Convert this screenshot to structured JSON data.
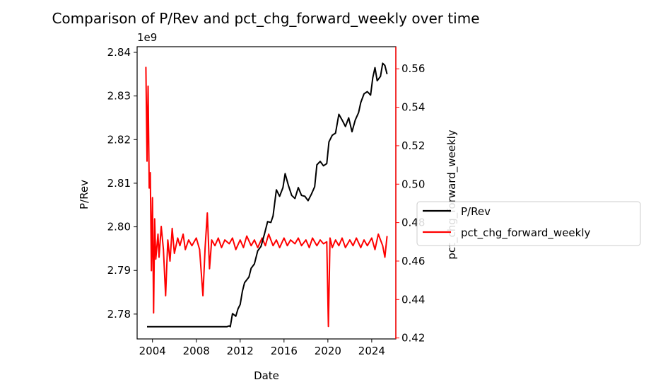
{
  "chart_data": {
    "type": "line",
    "title": "Comparison of P/Rev and pct_chg_forward_weekly over time",
    "xlabel": "Date",
    "xlim": [
      2002.6,
      2026.2
    ],
    "x_ticks": [
      2004,
      2008,
      2012,
      2016,
      2020,
      2024
    ],
    "y_left": {
      "label": "P/Rev",
      "offset_text": "1e9",
      "ylim": [
        2.7743,
        2.8413
      ],
      "ticks": [
        2.78,
        2.79,
        2.8,
        2.81,
        2.82,
        2.83,
        2.84
      ],
      "color": "#000000"
    },
    "y_right": {
      "label": "pct_chg_forward_weekly",
      "ylim": [
        0.4195,
        0.5715
      ],
      "ticks": [
        0.42,
        0.44,
        0.46,
        0.48,
        0.5,
        0.52,
        0.54,
        0.56
      ],
      "color": "#ff0000"
    },
    "legend_position": "right",
    "series": [
      {
        "name": "P/Rev",
        "axis": "left",
        "color": "#000000",
        "points": [
          [
            2003.5,
            2.7771
          ],
          [
            2010.8,
            2.7771
          ],
          [
            2011.0,
            2.7773
          ],
          [
            2011.1,
            2.7771
          ],
          [
            2011.3,
            2.7801
          ],
          [
            2011.6,
            2.7795
          ],
          [
            2011.8,
            2.7812
          ],
          [
            2012.0,
            2.7822
          ],
          [
            2012.2,
            2.7852
          ],
          [
            2012.4,
            2.7872
          ],
          [
            2012.8,
            2.7885
          ],
          [
            2013.0,
            2.7905
          ],
          [
            2013.3,
            2.7915
          ],
          [
            2013.6,
            2.7945
          ],
          [
            2013.9,
            2.7955
          ],
          [
            2014.2,
            2.7982
          ],
          [
            2014.5,
            2.8012
          ],
          [
            2014.8,
            2.801
          ],
          [
            2015.0,
            2.8025
          ],
          [
            2015.3,
            2.8085
          ],
          [
            2015.6,
            2.807
          ],
          [
            2015.9,
            2.809
          ],
          [
            2016.1,
            2.8122
          ],
          [
            2016.4,
            2.8095
          ],
          [
            2016.7,
            2.8072
          ],
          [
            2017.0,
            2.8065
          ],
          [
            2017.3,
            2.809
          ],
          [
            2017.6,
            2.8072
          ],
          [
            2017.9,
            2.807
          ],
          [
            2018.2,
            2.806
          ],
          [
            2018.5,
            2.8075
          ],
          [
            2018.8,
            2.8092
          ],
          [
            2019.0,
            2.8142
          ],
          [
            2019.3,
            2.815
          ],
          [
            2019.6,
            2.814
          ],
          [
            2019.9,
            2.8145
          ],
          [
            2020.1,
            2.8195
          ],
          [
            2020.4,
            2.821
          ],
          [
            2020.7,
            2.8215
          ],
          [
            2021.0,
            2.8258
          ],
          [
            2021.3,
            2.8245
          ],
          [
            2021.6,
            2.823
          ],
          [
            2021.9,
            2.825
          ],
          [
            2022.2,
            2.8218
          ],
          [
            2022.5,
            2.8245
          ],
          [
            2022.8,
            2.8262
          ],
          [
            2023.0,
            2.8285
          ],
          [
            2023.3,
            2.8305
          ],
          [
            2023.6,
            2.831
          ],
          [
            2023.9,
            2.8302
          ],
          [
            2024.1,
            2.8342
          ],
          [
            2024.3,
            2.8365
          ],
          [
            2024.5,
            2.8335
          ],
          [
            2024.8,
            2.8345
          ],
          [
            2025.0,
            2.8375
          ],
          [
            2025.2,
            2.837
          ],
          [
            2025.4,
            2.835
          ]
        ]
      },
      {
        "name": "pct_chg_forward_weekly",
        "axis": "right",
        "color": "#ff0000",
        "points": [
          [
            2003.4,
            0.561
          ],
          [
            2003.5,
            0.512
          ],
          [
            2003.6,
            0.551
          ],
          [
            2003.7,
            0.498
          ],
          [
            2003.8,
            0.506
          ],
          [
            2003.9,
            0.455
          ],
          [
            2004.0,
            0.493
          ],
          [
            2004.1,
            0.433
          ],
          [
            2004.2,
            0.482
          ],
          [
            2004.3,
            0.461
          ],
          [
            2004.5,
            0.474
          ],
          [
            2004.6,
            0.462
          ],
          [
            2004.8,
            0.478
          ],
          [
            2005.0,
            0.466
          ],
          [
            2005.2,
            0.442
          ],
          [
            2005.4,
            0.471
          ],
          [
            2005.6,
            0.46
          ],
          [
            2005.8,
            0.477
          ],
          [
            2006.0,
            0.464
          ],
          [
            2006.3,
            0.472
          ],
          [
            2006.5,
            0.468
          ],
          [
            2006.8,
            0.474
          ],
          [
            2007.0,
            0.466
          ],
          [
            2007.3,
            0.471
          ],
          [
            2007.6,
            0.468
          ],
          [
            2008.0,
            0.472
          ],
          [
            2008.3,
            0.466
          ],
          [
            2008.6,
            0.442
          ],
          [
            2008.8,
            0.467
          ],
          [
            2009.0,
            0.485
          ],
          [
            2009.2,
            0.456
          ],
          [
            2009.4,
            0.471
          ],
          [
            2009.7,
            0.468
          ],
          [
            2010.0,
            0.472
          ],
          [
            2010.3,
            0.467
          ],
          [
            2010.6,
            0.471
          ],
          [
            2011.0,
            0.469
          ],
          [
            2011.3,
            0.472
          ],
          [
            2011.6,
            0.466
          ],
          [
            2012.0,
            0.471
          ],
          [
            2012.3,
            0.467
          ],
          [
            2012.6,
            0.473
          ],
          [
            2013.0,
            0.468
          ],
          [
            2013.3,
            0.471
          ],
          [
            2013.6,
            0.467
          ],
          [
            2014.0,
            0.472
          ],
          [
            2014.3,
            0.468
          ],
          [
            2014.6,
            0.474
          ],
          [
            2015.0,
            0.468
          ],
          [
            2015.3,
            0.471
          ],
          [
            2015.6,
            0.467
          ],
          [
            2016.0,
            0.472
          ],
          [
            2016.3,
            0.468
          ],
          [
            2016.6,
            0.471
          ],
          [
            2017.0,
            0.469
          ],
          [
            2017.3,
            0.472
          ],
          [
            2017.6,
            0.468
          ],
          [
            2018.0,
            0.471
          ],
          [
            2018.3,
            0.467
          ],
          [
            2018.6,
            0.472
          ],
          [
            2019.0,
            0.468
          ],
          [
            2019.3,
            0.471
          ],
          [
            2019.6,
            0.469
          ],
          [
            2019.9,
            0.47
          ],
          [
            2020.05,
            0.426
          ],
          [
            2020.2,
            0.472
          ],
          [
            2020.4,
            0.467
          ],
          [
            2020.7,
            0.471
          ],
          [
            2021.0,
            0.468
          ],
          [
            2021.3,
            0.472
          ],
          [
            2021.6,
            0.467
          ],
          [
            2022.0,
            0.471
          ],
          [
            2022.3,
            0.468
          ],
          [
            2022.6,
            0.472
          ],
          [
            2023.0,
            0.467
          ],
          [
            2023.3,
            0.471
          ],
          [
            2023.6,
            0.468
          ],
          [
            2024.0,
            0.472
          ],
          [
            2024.3,
            0.466
          ],
          [
            2024.6,
            0.474
          ],
          [
            2025.0,
            0.468
          ],
          [
            2025.2,
            0.462
          ],
          [
            2025.4,
            0.473
          ]
        ]
      }
    ]
  }
}
